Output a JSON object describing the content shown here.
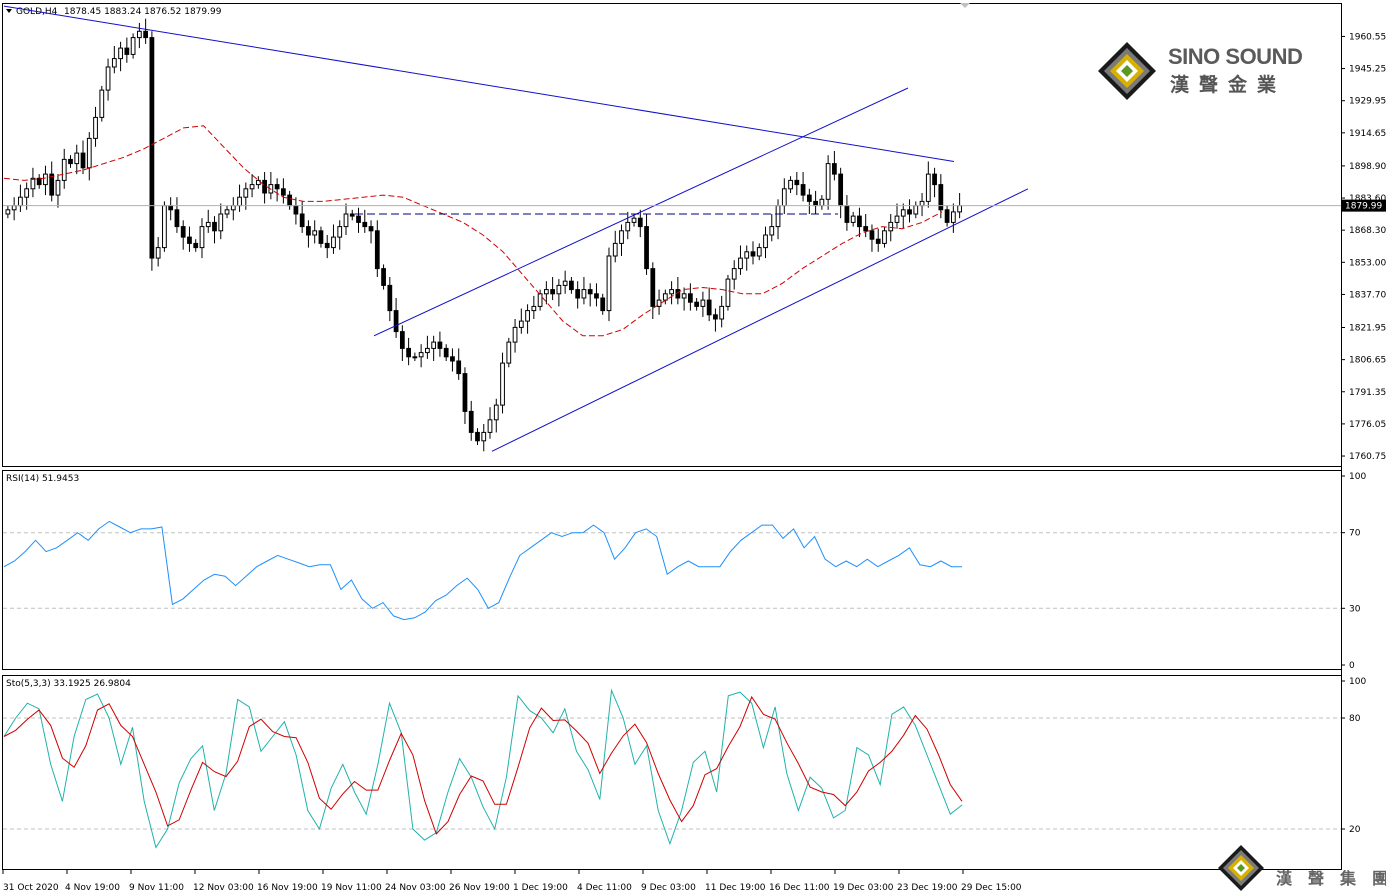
{
  "header": {
    "symbol": "GOLD,H4",
    "ohlc": "1878.45 1883.24 1876.52 1879.99"
  },
  "price_axis": {
    "ticks": [
      "1960.55",
      "1945.25",
      "1929.95",
      "1914.65",
      "1898.90",
      "1883.60",
      "1868.30",
      "1853.00",
      "1837.70",
      "1821.95",
      "1806.65",
      "1791.35",
      "1776.05",
      "1760.75"
    ],
    "current_price_label": "1879.99",
    "current_price": 1879.99
  },
  "rsi": {
    "label": "RSI(14) 51.9453",
    "ticks": [
      "100",
      "70",
      "30",
      "0"
    ],
    "levels": [
      70,
      30
    ]
  },
  "stoch": {
    "label": "Sto(5,3,3) 33.1925 26.9804",
    "ticks": [
      "100",
      "80",
      "20"
    ],
    "levels": [
      80,
      20
    ]
  },
  "time_axis": {
    "labels": [
      "31 Oct 2020",
      "4 Nov 19:00",
      "9 Nov 11:00",
      "12 Nov 03:00",
      "16 Nov 19:00",
      "19 Nov 11:00",
      "24 Nov 03:00",
      "26 Nov 19:00",
      "1 Dec 19:00",
      "4 Dec 11:00",
      "9 Dec 03:00",
      "11 Dec 19:00",
      "16 Dec 11:00",
      "19 Dec 03:00",
      "23 Dec 19:00",
      "29 Dec 15:00"
    ]
  },
  "logo": {
    "name_en": "SINO SOUND",
    "name_cn": "漢聲金業",
    "group_cn": "漢聲集團"
  },
  "colors": {
    "bull": "#ffffff",
    "bear": "#000000",
    "trendline": "#1010c8",
    "moving_average": "#d00000",
    "rsi_line": "#1e90ff",
    "stoch_main": "#20b2aa",
    "stoch_signal": "#d00000",
    "grid_dash": "#c0c0c0"
  },
  "chart_data": {
    "type": "candlestick",
    "symbol": "GOLD",
    "timeframe": "H4",
    "ylim": [
      1756,
      1976
    ],
    "price_closes_approx": [
      1878,
      1880,
      1884,
      1888,
      1893,
      1890,
      1895,
      1885,
      1892,
      1902,
      1900,
      1905,
      1898,
      1912,
      1922,
      1935,
      1946,
      1950,
      1955,
      1952,
      1960,
      1963,
      1960,
      1855,
      1860,
      1880,
      1878,
      1870,
      1865,
      1862,
      1860,
      1870,
      1872,
      1868,
      1876,
      1878,
      1880,
      1884,
      1888,
      1890,
      1892,
      1886,
      1890,
      1888,
      1885,
      1880,
      1876,
      1870,
      1866,
      1868,
      1862,
      1860,
      1865,
      1870,
      1876,
      1875,
      1872,
      1870,
      1868,
      1850,
      1842,
      1830,
      1820,
      1812,
      1808,
      1808,
      1810,
      1812,
      1815,
      1812,
      1808,
      1806,
      1800,
      1782,
      1772,
      1768,
      1772,
      1778,
      1785,
      1805,
      1815,
      1822,
      1825,
      1830,
      1832,
      1838,
      1840,
      1838,
      1842,
      1844,
      1840,
      1836,
      1840,
      1838,
      1836,
      1830,
      1856,
      1862,
      1868,
      1872,
      1874,
      1870,
      1850,
      1832,
      1835,
      1838,
      1840,
      1836,
      1838,
      1834,
      1832,
      1835,
      1828,
      1826,
      1832,
      1845,
      1850,
      1855,
      1858,
      1856,
      1860,
      1866,
      1870,
      1880,
      1888,
      1892,
      1890,
      1885,
      1882,
      1880,
      1883,
      1900,
      1895,
      1880,
      1872,
      1875,
      1870,
      1868,
      1864,
      1862,
      1868,
      1872,
      1875,
      1878,
      1876,
      1880,
      1882,
      1895,
      1890,
      1878,
      1872,
      1877,
      1880
    ],
    "moving_average_approx": [
      1893,
      1892,
      1893,
      1895,
      1897,
      1900,
      1903,
      1907,
      1912,
      1917,
      1918,
      1908,
      1898,
      1890,
      1884,
      1882,
      1882,
      1883,
      1884,
      1885,
      1884,
      1880,
      1876,
      1872,
      1866,
      1858,
      1847,
      1836,
      1825,
      1818,
      1818,
      1821,
      1828,
      1834,
      1840,
      1841,
      1840,
      1838,
      1838,
      1843,
      1850,
      1856,
      1862,
      1867,
      1870,
      1869,
      1872,
      1877
    ],
    "resistance_level": 1876,
    "trendlines": [
      {
        "name": "descending upper trendline",
        "start": [
          0,
          1975
        ],
        "end": [
          47.5,
          1901
        ]
      },
      {
        "name": "ascending channel top",
        "start": [
          18.5,
          1818
        ],
        "end": [
          45.2,
          1936
        ]
      },
      {
        "name": "ascending channel bottom",
        "start": [
          24.4,
          1763
        ],
        "end": [
          51.2,
          1888
        ]
      }
    ],
    "rsi": {
      "value": 51.9453,
      "ylim": [
        0,
        100
      ],
      "levels": [
        70,
        30
      ],
      "values_approx": [
        52,
        55,
        60,
        66,
        60,
        62,
        66,
        70,
        66,
        72,
        76,
        73,
        70,
        72,
        72,
        73,
        32,
        35,
        40,
        45,
        48,
        47,
        42,
        47,
        52,
        55,
        58,
        56,
        54,
        52,
        53,
        53,
        40,
        45,
        35,
        30,
        33,
        26,
        24,
        25,
        28,
        34,
        37,
        42,
        46,
        40,
        30,
        33,
        46,
        58,
        62,
        66,
        70,
        68,
        70,
        70,
        74,
        70,
        56,
        62,
        70,
        72,
        68,
        48,
        52,
        55,
        52,
        52,
        52,
        60,
        66,
        70,
        74,
        74,
        67,
        72,
        62,
        68,
        56,
        52,
        55,
        52,
        56,
        52,
        55,
        58,
        62,
        53,
        52,
        55,
        52,
        52
      ]
    },
    "stochastic": {
      "main": 33.1925,
      "signal": 26.9804,
      "ylim": [
        0,
        100
      ],
      "levels": [
        80,
        20
      ],
      "main_values_approx": [
        70,
        80,
        88,
        85,
        55,
        35,
        70,
        90,
        93,
        80,
        55,
        75,
        35,
        10,
        20,
        45,
        58,
        65,
        30,
        50,
        90,
        86,
        62,
        70,
        78,
        60,
        30,
        20,
        42,
        55,
        40,
        28,
        55,
        88,
        72,
        20,
        14,
        18,
        40,
        58,
        48,
        32,
        20,
        48,
        92,
        84,
        80,
        72,
        85,
        62,
        52,
        36,
        95,
        80,
        55,
        65,
        30,
        12,
        30,
        56,
        62,
        40,
        92,
        94,
        88,
        64,
        86,
        50,
        30,
        48,
        42,
        26,
        30,
        64,
        60,
        44,
        82,
        86,
        76,
        60,
        44,
        28,
        33
      ]
    }
  }
}
